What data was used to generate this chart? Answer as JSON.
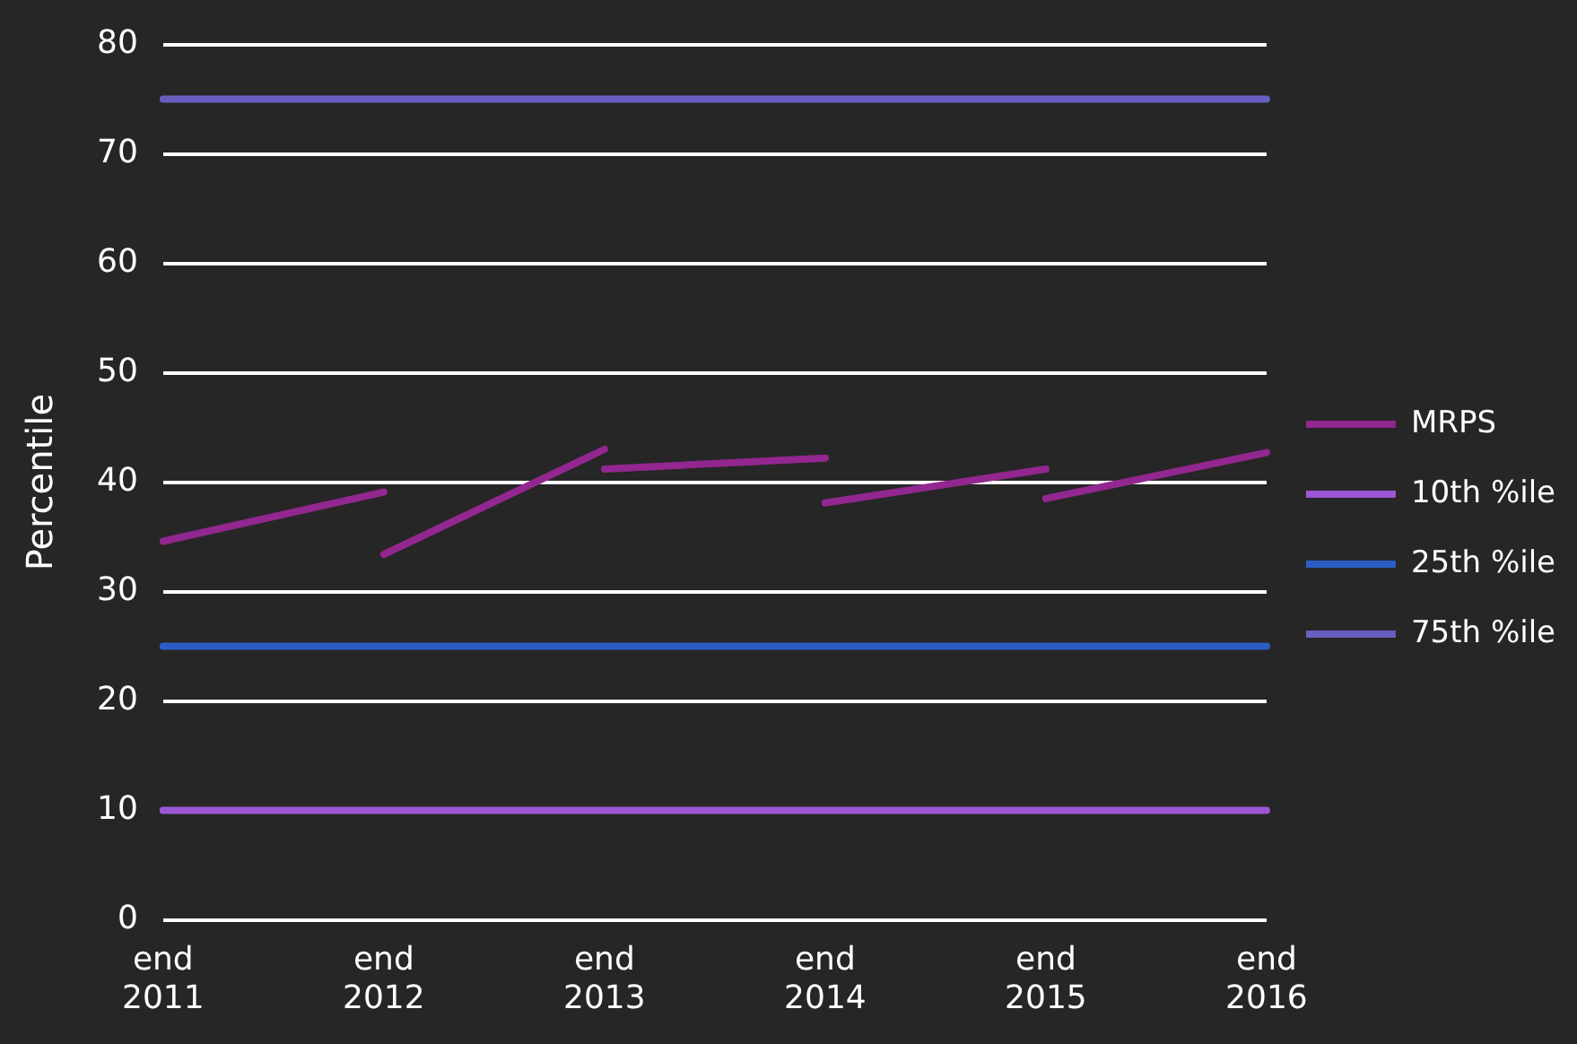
{
  "chart_data": {
    "type": "line",
    "ylabel": "Percentile",
    "categories": [
      "end 2011",
      "end 2012",
      "end 2013",
      "end 2014",
      "end 2015",
      "end 2016"
    ],
    "series": [
      {
        "name": "MRPS",
        "color": "#92278f",
        "x": [
          "end 2011",
          "end 2012",
          "end 2012",
          "end 2012",
          "end 2013",
          "end 2013",
          "end 2013",
          "end 2014",
          "end 2014",
          "end 2014",
          "end 2015",
          "end 2015",
          "end 2015",
          "end 2016"
        ],
        "values": [
          34.6,
          39.1,
          null,
          33.4,
          43.0,
          null,
          41.2,
          42.2,
          null,
          38.1,
          41.2,
          null,
          38.5,
          42.7
        ]
      },
      {
        "name": "10th %ile",
        "color": "#9b57d3",
        "values": [
          10,
          10,
          10,
          10,
          10,
          10
        ]
      },
      {
        "name": "25th %ile",
        "color": "#2c5cc5",
        "values": [
          25,
          25,
          25,
          25,
          25,
          25
        ]
      },
      {
        "name": "75th %ile",
        "color": "#665fc0",
        "values": [
          75,
          75,
          75,
          75,
          75,
          75
        ]
      }
    ],
    "ylim": [
      0,
      80
    ],
    "yticks": [
      0,
      10,
      20,
      30,
      40,
      50,
      60,
      70,
      80
    ],
    "grid": "y",
    "legend": "right",
    "marker": "none",
    "line_style": "solid"
  }
}
